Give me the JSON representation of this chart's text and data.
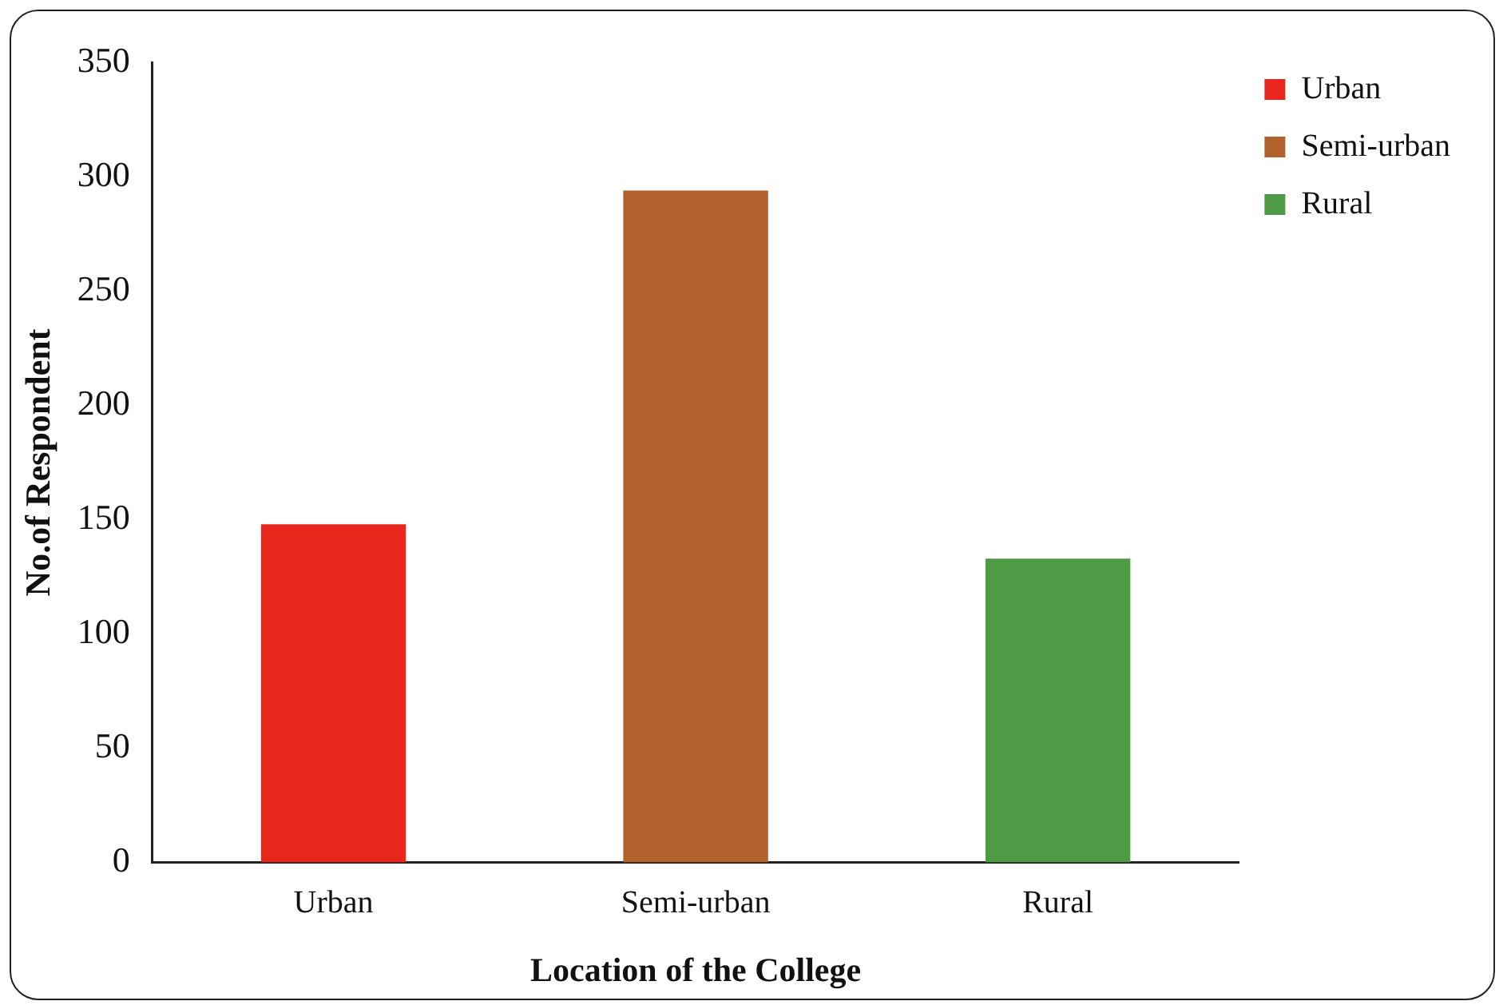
{
  "chart_data": {
    "type": "bar",
    "xlabel": "Location of the College",
    "ylabel": "No.of Respondent",
    "categories": [
      "Urban",
      "Semi-urban",
      "Rural"
    ],
    "series": [
      {
        "name": "Urban",
        "color": "#e8261c",
        "values": [
          148,
          null,
          null
        ]
      },
      {
        "name": "Semi-urban",
        "color": "#b0612c",
        "values": [
          null,
          294,
          null
        ]
      },
      {
        "name": "Rural",
        "color": "#4f9a45",
        "values": [
          null,
          null,
          133
        ]
      }
    ],
    "ylim": [
      0,
      350
    ],
    "yticks": [
      0,
      50,
      100,
      150,
      200,
      250,
      300,
      350
    ],
    "grid": false,
    "legend": "right"
  }
}
